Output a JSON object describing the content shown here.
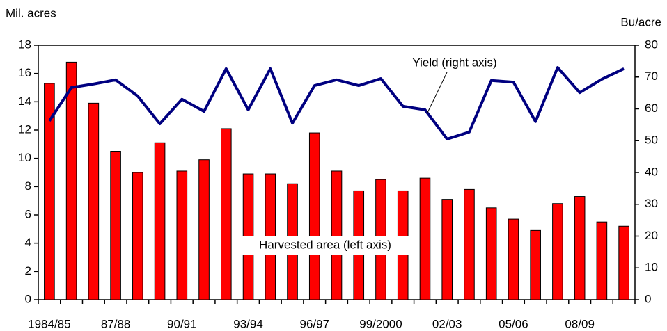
{
  "chart_data": {
    "type": "bar-line",
    "y_label": "Mil. acres",
    "y2_label": "Bu/acre",
    "categories": [
      "1984/85",
      null,
      null,
      "87/88",
      null,
      null,
      "90/91",
      null,
      null,
      "93/94",
      null,
      null,
      "96/97",
      null,
      null,
      "99/2000",
      null,
      null,
      "02/03",
      null,
      null,
      "05/06",
      null,
      null,
      "08/09",
      null,
      null
    ],
    "series": [
      {
        "name": "Harvested area (left axis)",
        "type": "bar",
        "color": "#ff0000",
        "values": [
          15.3,
          16.8,
          13.9,
          10.5,
          9.0,
          11.1,
          9.1,
          9.9,
          12.1,
          8.9,
          8.9,
          8.2,
          11.8,
          9.1,
          7.7,
          8.5,
          7.7,
          8.6,
          7.1,
          7.8,
          6.5,
          5.7,
          4.9,
          6.8,
          7.3,
          5.5,
          5.2
        ]
      },
      {
        "name": "Yield (right axis)",
        "type": "line",
        "axis": "y2",
        "color": "#000080",
        "values": [
          56.2,
          66.7,
          67.8,
          69.1,
          64.0,
          55.3,
          63.0,
          59.2,
          72.6,
          59.7,
          72.6,
          55.5,
          67.3,
          69.1,
          67.3,
          69.5,
          60.8,
          59.7,
          50.5,
          52.7,
          68.9,
          68.4,
          56.0,
          73.0,
          65.1,
          69.3,
          72.6
        ]
      }
    ],
    "ylim": [
      0,
      18
    ],
    "yticks": [
      0,
      2,
      4,
      6,
      8,
      10,
      12,
      14,
      16,
      18
    ],
    "y2lim": [
      0,
      80
    ],
    "y2ticks": [
      0,
      10,
      20,
      30,
      40,
      50,
      60,
      70,
      80
    ]
  }
}
